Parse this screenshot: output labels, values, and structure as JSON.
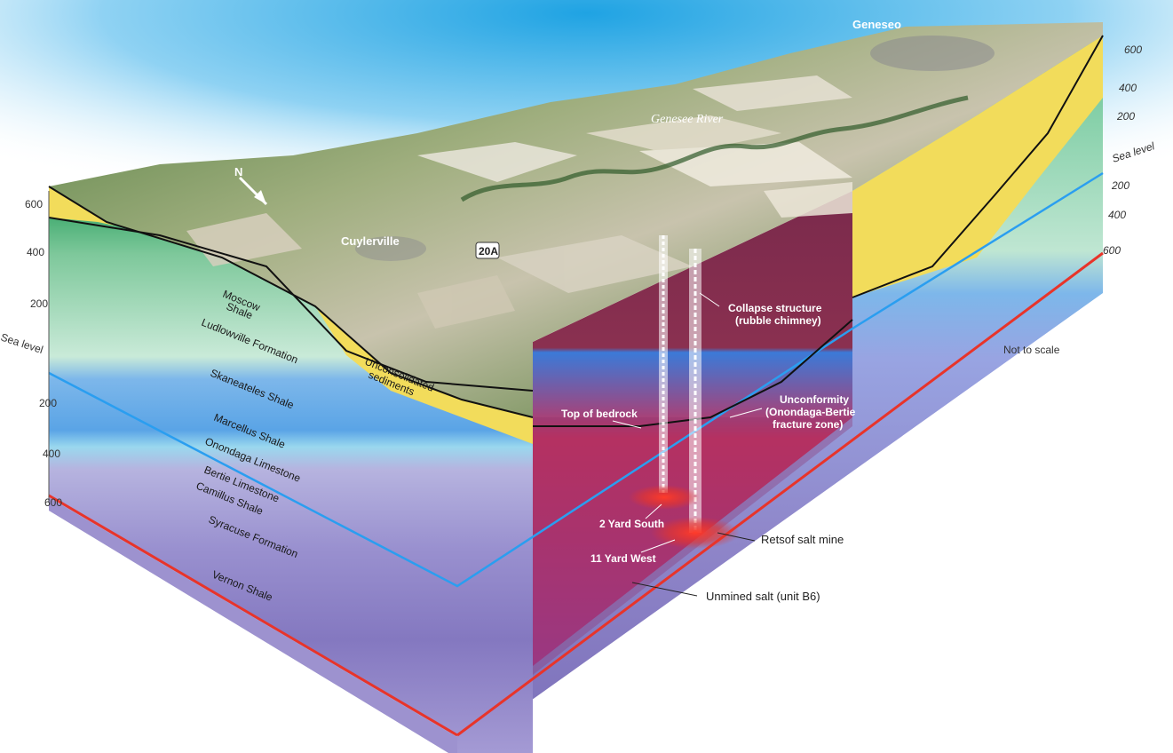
{
  "places": {
    "geneseo": "Geneseo",
    "genesee_river": "Genesee River",
    "cuylerville": "Cuylerville",
    "route_shield": "20A"
  },
  "left_scale": {
    "ticks": [
      "600",
      "400",
      "200",
      "Sea level",
      "200",
      "400",
      "600"
    ]
  },
  "right_scale": {
    "ticks": [
      "600",
      "400",
      "200",
      "Sea level",
      "200",
      "400",
      "600"
    ]
  },
  "formations": {
    "moscow_shale_1": "Moscow",
    "moscow_shale_2": "Shale",
    "ludlowville": "Ludlowville Formation",
    "unconsolidated_1": "Unconsolidated",
    "unconsolidated_2": "sediments",
    "skaneateles": "Skaneateles Shale",
    "marcellus": "Marcellus Shale",
    "onondaga": "Onondaga Limestone",
    "bertie": "Bertie Limestone",
    "camillus": "Camillus Shale",
    "syracuse": "Syracuse Formation",
    "vernon": "Vernon Shale"
  },
  "annotations": {
    "collapse_1": "Collapse structure",
    "collapse_2": "(rubble chimney)",
    "unconformity_1": "Unconformity",
    "unconformity_2": "(Onondaga-Bertie",
    "unconformity_3": "fracture zone)",
    "top_bedrock": "Top of bedrock",
    "yard_south": "2 Yard South",
    "yard_west": "11 Yard West",
    "retsof": "Retsof salt mine",
    "unmined_salt": "Unmined salt (unit B6)",
    "not_to_scale": "Not to scale"
  },
  "north_arrow": "N",
  "colors": {
    "sky_top": "#29a9e6",
    "sediments": "#f0dc5a",
    "green_layers": "#9fd8b8",
    "blue_layers": "#7fb8ea",
    "purple_layers": "#9a92cf",
    "salt_red": "#e8342a",
    "mine_core": "#6e1f3a"
  }
}
